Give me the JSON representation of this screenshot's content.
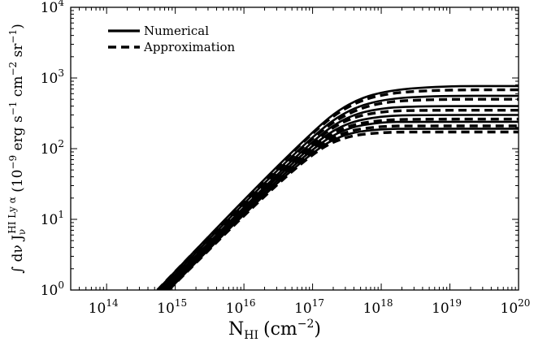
{
  "chart_data": {
    "type": "line",
    "title": "",
    "xlabel": {
      "base": "N",
      "sub": "HI",
      "unit": "(cm",
      "unit_exp": "−2",
      "unit_close": ")"
    },
    "ylabel": "∫ dν J_ν^{HI Lyα} (10^{−9} erg s^{−1} cm^{−2} sr^{−1})",
    "ylabel_parts": {
      "integral": "∫ dν J",
      "sup": "HI Ly α",
      "sub": "ν",
      "units_a": " (10",
      "units_a_exp": "−9",
      "units_b": " erg s",
      "units_b_exp": "−1",
      "units_c": " cm",
      "units_c_exp": "−2",
      "units_d": " sr",
      "units_d_exp": "−1",
      "units_e": ")"
    },
    "xscale": "log",
    "yscale": "log",
    "xlim": [
      30000000000000.0,
      1e+20
    ],
    "ylim": [
      1,
      10000
    ],
    "x_ticks": [
      {
        "value": 100000000000000.0,
        "base": "10",
        "exp": "14"
      },
      {
        "value": 1000000000000000.0,
        "base": "10",
        "exp": "15"
      },
      {
        "value": 1e+16,
        "base": "10",
        "exp": "16"
      },
      {
        "value": 1e+17,
        "base": "10",
        "exp": "17"
      },
      {
        "value": 1e+18,
        "base": "10",
        "exp": "18"
      },
      {
        "value": 1e+19,
        "base": "10",
        "exp": "19"
      },
      {
        "value": 1e+20,
        "base": "10",
        "exp": "20"
      }
    ],
    "y_ticks": [
      {
        "value": 1,
        "base": "10",
        "exp": "0"
      },
      {
        "value": 10,
        "base": "10",
        "exp": "1"
      },
      {
        "value": 100,
        "base": "10",
        "exp": "2"
      },
      {
        "value": 1000,
        "base": "10",
        "exp": "3"
      },
      {
        "value": 10000,
        "base": "10",
        "exp": "4"
      }
    ],
    "grid": false,
    "legend_position": "top-left",
    "legend": [
      {
        "label": "Numerical",
        "style": "solid"
      },
      {
        "label": "Approximation",
        "style": "dashed"
      }
    ],
    "series": [
      {
        "style": "solid",
        "x": [
          550000000000000.0,
          1e+16,
          1e+17,
          3e+17,
          1e+18,
          7e+18,
          1e+20
        ],
        "y": [
          1,
          19,
          175,
          420,
          650,
          770,
          770
        ]
      },
      {
        "style": "dashed",
        "x": [
          550000000000000.0,
          1e+16,
          1e+17,
          3e+17,
          1e+18,
          7e+18,
          1e+20
        ],
        "y": [
          1,
          18.5,
          170,
          390,
          600,
          680,
          680
        ]
      },
      {
        "style": "solid",
        "x": [
          600000000000000.0,
          1e+16,
          1e+17,
          3e+17,
          1e+18,
          6e+18,
          1e+20
        ],
        "y": [
          1,
          17,
          150,
          340,
          500,
          560,
          560
        ]
      },
      {
        "style": "dashed",
        "x": [
          600000000000000.0,
          1e+16,
          1e+17,
          3e+17,
          1e+18,
          6e+18,
          1e+20
        ],
        "y": [
          1,
          16.5,
          145,
          310,
          460,
          500,
          500
        ]
      },
      {
        "style": "solid",
        "x": [
          650000000000000.0,
          1e+16,
          1e+17,
          3e+17,
          1e+18,
          5e+18,
          1e+20
        ],
        "y": [
          1,
          15,
          130,
          280,
          380,
          400,
          400
        ]
      },
      {
        "style": "dashed",
        "x": [
          650000000000000.0,
          1e+16,
          1e+17,
          3e+17,
          1e+18,
          5e+18,
          1e+20
        ],
        "y": [
          1,
          14.5,
          125,
          260,
          340,
          350,
          350
        ]
      },
      {
        "style": "solid",
        "x": [
          700000000000000.0,
          1e+16,
          1e+17,
          3e+17,
          1e+18,
          4e+18,
          1e+20
        ],
        "y": [
          1,
          14,
          115,
          230,
          290,
          300,
          300
        ]
      },
      {
        "style": "dashed",
        "x": [
          700000000000000.0,
          1e+16,
          1e+17,
          3e+17,
          1e+18,
          4e+18,
          1e+20
        ],
        "y": [
          1,
          13.5,
          110,
          210,
          255,
          262,
          262
        ]
      },
      {
        "style": "solid",
        "x": [
          750000000000000.0,
          1e+16,
          1e+17,
          3e+17,
          1e+18,
          3e+18,
          1e+20
        ],
        "y": [
          1,
          13,
          102,
          195,
          238,
          240,
          240
        ]
      },
      {
        "style": "dashed",
        "x": [
          750000000000000.0,
          1e+16,
          1e+17,
          3e+17,
          1e+18,
          3e+18,
          1e+20
        ],
        "y": [
          1,
          12.5,
          98,
          178,
          208,
          210,
          210
        ]
      },
      {
        "style": "solid",
        "x": [
          800000000000000.0,
          1e+16,
          1e+17,
          3e+17,
          1e+18,
          3e+18,
          1e+20
        ],
        "y": [
          1,
          12,
          92,
          165,
          190,
          192,
          192
        ]
      },
      {
        "style": "dashed",
        "x": [
          800000000000000.0,
          1e+16,
          1e+17,
          3e+17,
          1e+18,
          3e+18,
          1e+20
        ],
        "y": [
          1,
          11.5,
          88,
          150,
          170,
          172,
          172
        ]
      }
    ]
  }
}
